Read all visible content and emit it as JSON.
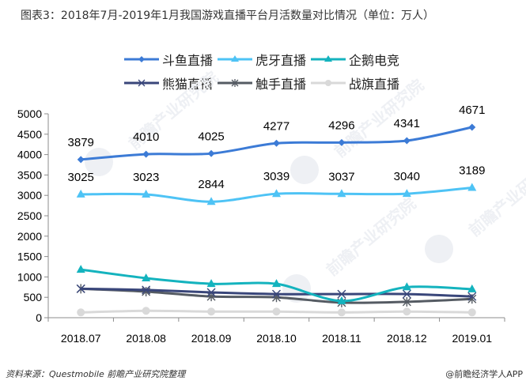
{
  "title": "图表3：2018年7月-2019年1月我国游戏直播平台月活数量对比情况（单位：万人）",
  "footer": {
    "source": "资料来源：Questmobile 前瞻产业研究院整理",
    "credit": "@前瞻经济学人APP"
  },
  "watermark": "前瞻产业研究院",
  "chart_data": {
    "type": "line",
    "title": "2018年7月-2019年1月我国游戏直播平台月活数量对比情况（单位：万人）",
    "xlabel": "",
    "ylabel": "",
    "categories": [
      "2018.07",
      "2018.08",
      "2018.09",
      "2018.10",
      "2018.11",
      "2018.12",
      "2019.01"
    ],
    "ylim": [
      0,
      5000
    ],
    "yticks": [
      0,
      500,
      1000,
      1500,
      2000,
      2500,
      3000,
      3500,
      4000,
      4500,
      5000
    ],
    "grid": false,
    "legend_position": "top",
    "series": [
      {
        "name": "斗鱼直播",
        "color": "#3C7BD6",
        "marker": "diamond",
        "labeled": true,
        "values": [
          3879,
          4010,
          4025,
          4277,
          4296,
          4341,
          4671
        ]
      },
      {
        "name": "虎牙直播",
        "color": "#4EC3F5",
        "marker": "triangle",
        "labeled": true,
        "values": [
          3025,
          3023,
          2844,
          3039,
          3037,
          3040,
          3189
        ]
      },
      {
        "name": "企鹅电竞",
        "color": "#14B3BE",
        "marker": "triangle",
        "labeled": false,
        "values": [
          1180,
          970,
          830,
          830,
          410,
          750,
          700
        ]
      },
      {
        "name": "熊猫直播",
        "color": "#39467A",
        "marker": "x",
        "labeled": false,
        "values": [
          710,
          680,
          620,
          580,
          580,
          580,
          520
        ]
      },
      {
        "name": "触手直播",
        "color": "#555B63",
        "marker": "star",
        "labeled": false,
        "values": [
          710,
          640,
          520,
          500,
          370,
          390,
          460
        ]
      },
      {
        "name": "战旗直播",
        "color": "#D9D9D9",
        "marker": "circle",
        "labeled": false,
        "values": [
          130,
          170,
          150,
          150,
          130,
          150,
          130
        ]
      }
    ]
  }
}
